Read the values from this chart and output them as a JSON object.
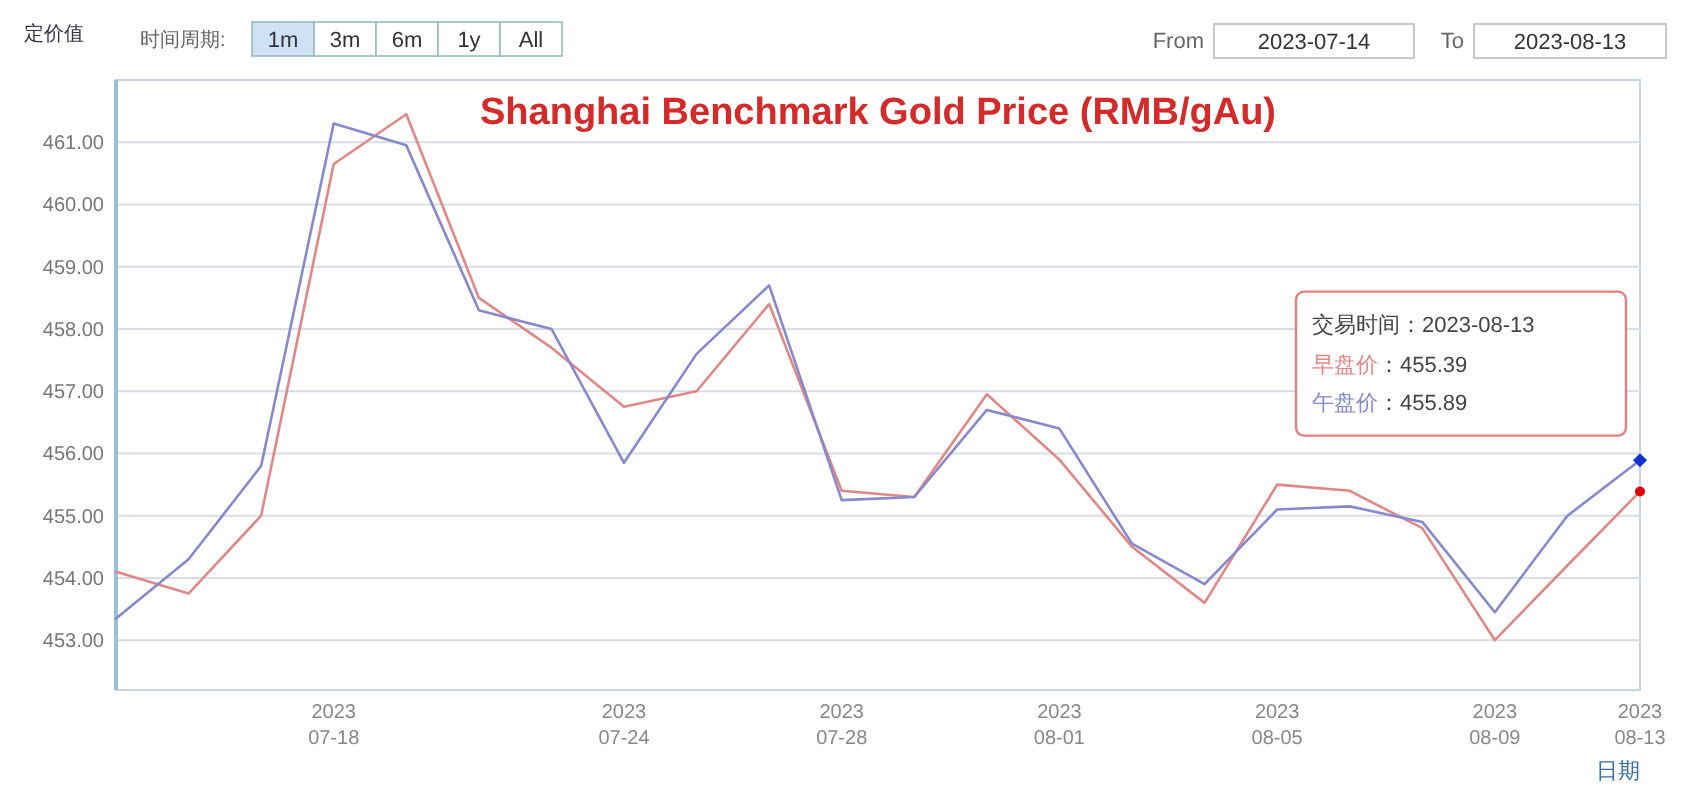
{
  "chart_data": {
    "type": "line",
    "title": "Shanghai Benchmark Gold Price (RMB/gAu)",
    "ylabel": "定价值",
    "xlabel": "日期",
    "categories": [
      null,
      null,
      null,
      "2023\n07-18",
      null,
      null,
      null,
      "2023\n07-24",
      null,
      null,
      "2023\n07-28",
      null,
      null,
      "2023\n08-01",
      null,
      null,
      "2023\n08-05",
      null,
      null,
      "2023\n08-09",
      null,
      "2023\n08-13"
    ],
    "series": [
      {
        "name": "早盘价",
        "color": "#e08888",
        "values": [
          454.1,
          453.75,
          455.0,
          460.65,
          461.45,
          458.5,
          457.7,
          456.75,
          457.0,
          458.4,
          455.4,
          455.3,
          456.95,
          455.9,
          454.5,
          453.6,
          455.5,
          455.4,
          454.8,
          453.0,
          454.2,
          455.39
        ]
      },
      {
        "name": "午盘价",
        "color": "#8888cc",
        "values": [
          453.35,
          454.3,
          455.8,
          461.3,
          460.95,
          458.3,
          458.0,
          455.85,
          457.6,
          458.7,
          455.25,
          455.3,
          456.7,
          456.4,
          454.55,
          453.9,
          455.1,
          455.15,
          454.9,
          453.45,
          455.0,
          455.89
        ]
      }
    ],
    "ylim": [
      452.2,
      462
    ],
    "yticks": [
      {
        "value": 453,
        "label": "453.00"
      },
      {
        "value": 454,
        "label": "454.00"
      },
      {
        "value": 455,
        "label": "455.00"
      },
      {
        "value": 456,
        "label": "456.00"
      },
      {
        "value": 457,
        "label": "457.00"
      },
      {
        "value": 458,
        "label": "458.00"
      },
      {
        "value": 459,
        "label": "459.00"
      },
      {
        "value": 460,
        "label": "460.00"
      },
      {
        "value": 461,
        "label": "461.00"
      }
    ],
    "grid": "y",
    "marker": "none",
    "line_style": "solid",
    "annotations": [
      "时间周期:",
      "1m",
      "3m",
      "6m",
      "1y",
      "All",
      "From",
      "2023-07-14",
      "To",
      "2023-08-13",
      "交易时间：2023-08-13",
      "：455.39",
      "：455.89"
    ]
  }
}
